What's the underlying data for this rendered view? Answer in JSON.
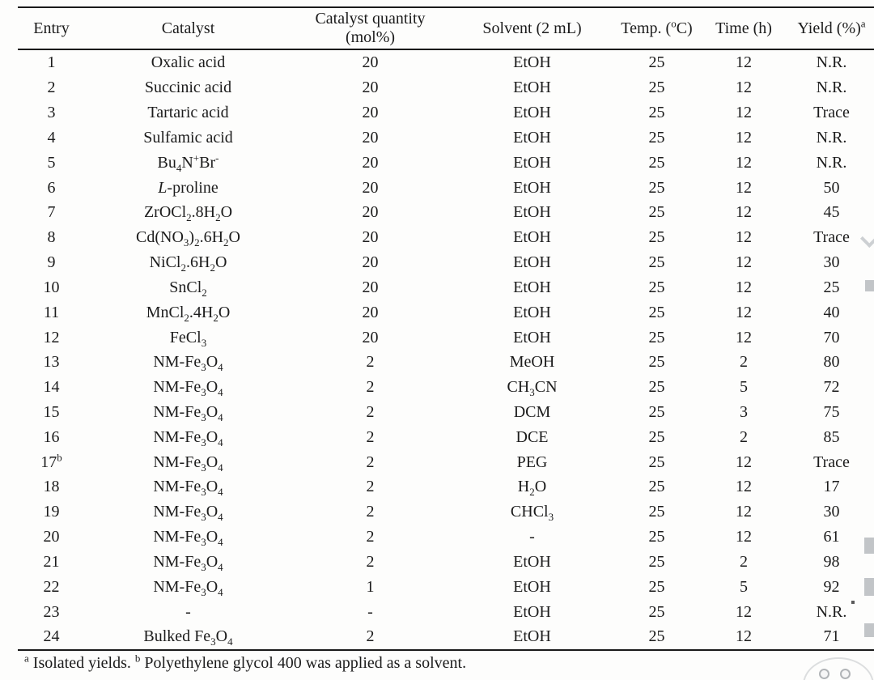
{
  "table": {
    "columns": [
      {
        "key": "entry",
        "label": "Entry"
      },
      {
        "key": "catalyst",
        "label": "Catalyst"
      },
      {
        "key": "quantity",
        "label": "Catalyst quantity",
        "label2": "(mol%)"
      },
      {
        "key": "solvent",
        "label": "Solvent (2 mL)"
      },
      {
        "key": "temp",
        "label": "Temp. (^{o}C)"
      },
      {
        "key": "time",
        "label": "Time (h)"
      },
      {
        "key": "yield",
        "label": "Yield (%)^{a}"
      }
    ],
    "rows": [
      [
        "1",
        "Oxalic acid",
        "20",
        "EtOH",
        "25",
        "12",
        "N.R."
      ],
      [
        "2",
        "Succinic acid",
        "20",
        "EtOH",
        "25",
        "12",
        "N.R."
      ],
      [
        "3",
        "Tartaric acid",
        "20",
        "EtOH",
        "25",
        "12",
        "Trace"
      ],
      [
        "4",
        "Sulfamic acid",
        "20",
        "EtOH",
        "25",
        "12",
        "N.R."
      ],
      [
        "5",
        "Bu_{4}N^{+}Br^{-}",
        "20",
        "EtOH",
        "25",
        "12",
        "N.R."
      ],
      [
        "6",
        "*L*-proline",
        "20",
        "EtOH",
        "25",
        "12",
        "50"
      ],
      [
        "7",
        "ZrOCl_{2}.8H_{2}O",
        "20",
        "EtOH",
        "25",
        "12",
        "45"
      ],
      [
        "8",
        "Cd(NO_{3})_{2}.6H_{2}O",
        "20",
        "EtOH",
        "25",
        "12",
        "Trace"
      ],
      [
        "9",
        "NiCl_{2}.6H_{2}O",
        "20",
        "EtOH",
        "25",
        "12",
        "30"
      ],
      [
        "10",
        "SnCl_{2}",
        "20",
        "EtOH",
        "25",
        "12",
        "25"
      ],
      [
        "11",
        "MnCl_{2}.4H_{2}O",
        "20",
        "EtOH",
        "25",
        "12",
        "40"
      ],
      [
        "12",
        "FeCl_{3}",
        "20",
        "EtOH",
        "25",
        "12",
        "70"
      ],
      [
        "13",
        "NM-Fe_{3}O_{4}",
        "2",
        "MeOH",
        "25",
        "2",
        "80"
      ],
      [
        "14",
        "NM-Fe_{3}O_{4}",
        "2",
        "CH_{3}CN",
        "25",
        "5",
        "72"
      ],
      [
        "15",
        "NM-Fe_{3}O_{4}",
        "2",
        "DCM",
        "25",
        "3",
        "75"
      ],
      [
        "16",
        "NM-Fe_{3}O_{4}",
        "2",
        "DCE",
        "25",
        "2",
        "85"
      ],
      [
        "17^{b}",
        "NM-Fe_{3}O_{4}",
        "2",
        "PEG",
        "25",
        "12",
        "Trace"
      ],
      [
        "18",
        "NM-Fe_{3}O_{4}",
        "2",
        "H_{2}O",
        "25",
        "12",
        "17"
      ],
      [
        "19",
        "NM-Fe_{3}O_{4}",
        "2",
        "CHCl_{3}",
        "25",
        "12",
        "30"
      ],
      [
        "20",
        "NM-Fe_{3}O_{4}",
        "2",
        "-",
        "25",
        "12",
        "61"
      ],
      [
        "21",
        "NM-Fe_{3}O_{4}",
        "2",
        "EtOH",
        "25",
        "2",
        "98"
      ],
      [
        "22",
        "NM-Fe_{3}O_{4}",
        "1",
        "EtOH",
        "25",
        "5",
        "92"
      ],
      [
        "23",
        "-",
        "-",
        "EtOH",
        "25",
        "12",
        "N.R."
      ],
      [
        "24",
        "Bulked Fe_{3}O_{4}",
        "2",
        "EtOH",
        "25",
        "12",
        "71"
      ]
    ]
  },
  "footnote": "^{a} Isolated yields. ^{b} Polyethylene glycol 400 was applied as a solvent.",
  "colors": {
    "text": "#1c1c1c",
    "rule": "#1a1a1a",
    "artifact": "#b7bbbe"
  }
}
